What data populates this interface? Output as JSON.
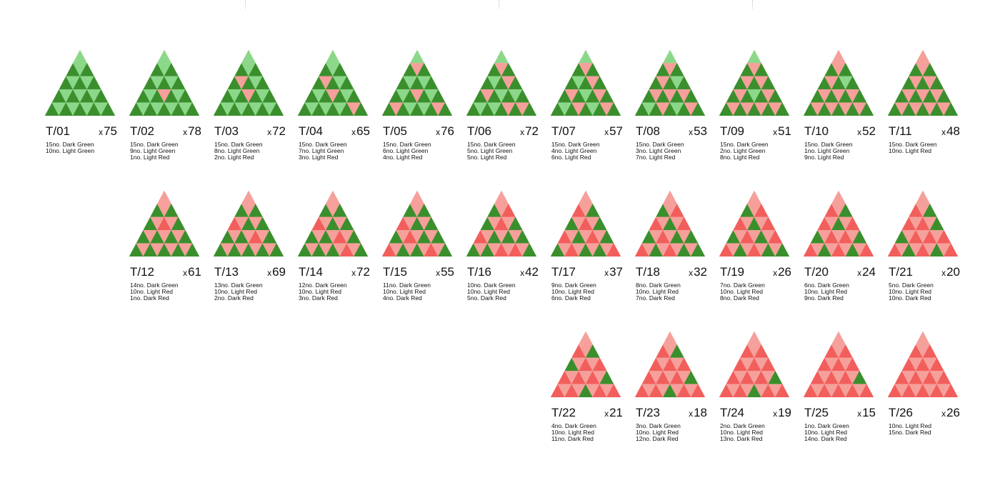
{
  "colors": {
    "Dark Green": "#3a8f2c",
    "Light Green": "#8cd88a",
    "Light Red": "#f6a09b",
    "Dark Red": "#f25e5c"
  },
  "tiles": [
    {
      "code": "T/01",
      "qty": "75",
      "row": 0,
      "col": 0,
      "lines": [
        "15no. Dark Green",
        "10no. Light Green"
      ],
      "grid": [
        [
          "LG"
        ],
        [
          "DG",
          "LG",
          "DG"
        ],
        [
          "DG",
          "LG",
          "DG",
          "LG",
          "DG"
        ],
        [
          "DG",
          "LG",
          "DG",
          "LG",
          "DG",
          "LG",
          "DG"
        ],
        [
          "DG",
          "LG",
          "DG",
          "LG",
          "DG",
          "LG",
          "DG",
          "LG",
          "DG"
        ]
      ]
    },
    {
      "code": "T/02",
      "qty": "78",
      "row": 0,
      "col": 1,
      "lines": [
        "15no. Dark Green",
        "9no. Light Green",
        "1no. Light Red"
      ],
      "grid": [
        [
          "LG"
        ],
        [
          "DG",
          "LG",
          "DG"
        ],
        [
          "DG",
          "LG",
          "DG",
          "LG",
          "DG"
        ],
        [
          "DG",
          "LG",
          "DG",
          "LR",
          "DG",
          "LG",
          "DG"
        ],
        [
          "DG",
          "LG",
          "DG",
          "LG",
          "DG",
          "LG",
          "DG",
          "LG",
          "DG"
        ]
      ]
    },
    {
      "code": "T/03",
      "qty": "72",
      "row": 0,
      "col": 2,
      "lines": [
        "15no. Dark Green",
        "8no. Light Green",
        "2no. Light Red"
      ],
      "grid": [
        [
          "LG"
        ],
        [
          "DG",
          "LG",
          "DG"
        ],
        [
          "DG",
          "LR",
          "DG",
          "LG",
          "DG"
        ],
        [
          "DG",
          "LG",
          "DG",
          "LR",
          "DG",
          "LG",
          "DG"
        ],
        [
          "DG",
          "LG",
          "DG",
          "LG",
          "DG",
          "LG",
          "DG",
          "LG",
          "DG"
        ]
      ]
    },
    {
      "code": "T/04",
      "qty": "65",
      "row": 0,
      "col": 3,
      "lines": [
        "15no. Dark Green",
        "7no. Light Green",
        "3no. Light Red"
      ],
      "grid": [
        [
          "LG"
        ],
        [
          "DG",
          "LG",
          "DG"
        ],
        [
          "DG",
          "LR",
          "DG",
          "LG",
          "DG"
        ],
        [
          "DG",
          "LG",
          "DG",
          "LR",
          "DG",
          "LG",
          "DG"
        ],
        [
          "DG",
          "LG",
          "DG",
          "LG",
          "DG",
          "LG",
          "DG",
          "LR",
          "DG"
        ]
      ]
    },
    {
      "code": "T/05",
      "qty": "76",
      "row": 0,
      "col": 4,
      "lines": [
        "15no. Dark Green",
        "6no. Light Green",
        "4no. Light Red"
      ],
      "grid": [
        [
          "LG"
        ],
        [
          "DG",
          "LR",
          "DG"
        ],
        [
          "DG",
          "LG",
          "DG",
          "LG",
          "DG"
        ],
        [
          "DG",
          "LG",
          "DG",
          "LR",
          "DG",
          "LG",
          "DG"
        ],
        [
          "DG",
          "LR",
          "DG",
          "LG",
          "DG",
          "LG",
          "DG",
          "LR",
          "DG"
        ]
      ]
    },
    {
      "code": "T/06",
      "qty": "72",
      "row": 0,
      "col": 5,
      "lines": [
        "15no. Dark Green",
        "5no. Light Green",
        "5no. Light Red"
      ],
      "grid": [
        [
          "LG"
        ],
        [
          "DG",
          "LR",
          "DG"
        ],
        [
          "DG",
          "LG",
          "DG",
          "LR",
          "DG"
        ],
        [
          "DG",
          "LR",
          "DG",
          "LG",
          "DG",
          "LG",
          "DG"
        ],
        [
          "DG",
          "LG",
          "DG",
          "LG",
          "DG",
          "LR",
          "DG",
          "LR",
          "DG"
        ]
      ]
    },
    {
      "code": "T/07",
      "qty": "57",
      "row": 0,
      "col": 6,
      "lines": [
        "15no. Dark Green",
        "4no. Light Green",
        "6no. Light Red"
      ],
      "grid": [
        [
          "LG"
        ],
        [
          "DG",
          "LR",
          "DG"
        ],
        [
          "DG",
          "LG",
          "DG",
          "LR",
          "DG"
        ],
        [
          "DG",
          "LR",
          "DG",
          "LG",
          "DG",
          "LR",
          "DG"
        ],
        [
          "DG",
          "LG",
          "DG",
          "LR",
          "DG",
          "LG",
          "DG",
          "LR",
          "DG"
        ]
      ]
    },
    {
      "code": "T/08",
      "qty": "53",
      "row": 0,
      "col": 7,
      "lines": [
        "15no. Dark Green",
        "3no. Light Green",
        "7no. Light Red"
      ],
      "grid": [
        [
          "LG"
        ],
        [
          "DG",
          "LR",
          "DG"
        ],
        [
          "DG",
          "LR",
          "DG",
          "LG",
          "DG"
        ],
        [
          "DG",
          "LR",
          "DG",
          "LR",
          "DG",
          "LR",
          "DG"
        ],
        [
          "DG",
          "LG",
          "DG",
          "LR",
          "DG",
          "LG",
          "DG",
          "LR",
          "DG"
        ]
      ]
    },
    {
      "code": "T/09",
      "qty": "51",
      "row": 0,
      "col": 8,
      "lines": [
        "15no. Dark Green",
        "2no. Light Green",
        "8no. Light Red"
      ],
      "grid": [
        [
          "LG"
        ],
        [
          "DG",
          "LR",
          "DG"
        ],
        [
          "DG",
          "LR",
          "DG",
          "LR",
          "DG"
        ],
        [
          "DG",
          "LR",
          "DG",
          "LG",
          "DG",
          "LR",
          "DG"
        ],
        [
          "DG",
          "LR",
          "DG",
          "LR",
          "DG",
          "LR",
          "DG",
          "LR",
          "DG"
        ]
      ]
    },
    {
      "code": "T/10",
      "qty": "52",
      "row": 0,
      "col": 9,
      "lines": [
        "15no. Dark Green",
        "1no. Light Green",
        "9no. Light Red"
      ],
      "grid": [
        [
          "LR"
        ],
        [
          "DG",
          "LR",
          "DG"
        ],
        [
          "DG",
          "LR",
          "DG",
          "LG",
          "DG"
        ],
        [
          "DG",
          "LR",
          "DG",
          "LR",
          "DG",
          "LR",
          "DG"
        ],
        [
          "DG",
          "LR",
          "DG",
          "LR",
          "DG",
          "LR",
          "DG",
          "LR",
          "DG"
        ]
      ]
    },
    {
      "code": "T/11",
      "qty": "48",
      "row": 0,
      "col": 10,
      "lines": [
        "15no. Dark Green",
        "10no. Light Red"
      ],
      "grid": [
        [
          "LR"
        ],
        [
          "DG",
          "LR",
          "DG"
        ],
        [
          "DG",
          "LR",
          "DG",
          "LR",
          "DG"
        ],
        [
          "DG",
          "LR",
          "DG",
          "LR",
          "DG",
          "LR",
          "DG"
        ],
        [
          "DG",
          "LR",
          "DG",
          "LR",
          "DG",
          "LR",
          "DG",
          "LR",
          "DG"
        ]
      ]
    },
    {
      "code": "T/12",
      "qty": "61",
      "row": 1,
      "col": 1,
      "lines": [
        "14no. Dark Green",
        "10no. Light Red",
        "1no. Dark Red"
      ],
      "grid": [
        [
          "LR"
        ],
        [
          "DG",
          "LR",
          "DG"
        ],
        [
          "DG",
          "LR",
          "DR",
          "LR",
          "DG"
        ],
        [
          "DG",
          "LR",
          "DG",
          "LR",
          "DG",
          "LR",
          "DG"
        ],
        [
          "DG",
          "LR",
          "DG",
          "LR",
          "DG",
          "LR",
          "DG",
          "LR",
          "DG"
        ]
      ]
    },
    {
      "code": "T/13",
      "qty": "69",
      "row": 1,
      "col": 2,
      "lines": [
        "13no. Dark Green",
        "10no. Light Red",
        "2no. Dark Red"
      ],
      "grid": [
        [
          "LR"
        ],
        [
          "DG",
          "LR",
          "DG"
        ],
        [
          "DR",
          "LR",
          "DG",
          "LR",
          "DG"
        ],
        [
          "DG",
          "LR",
          "DG",
          "LR",
          "DR",
          "LR",
          "DG"
        ],
        [
          "DG",
          "LR",
          "DG",
          "LR",
          "DG",
          "LR",
          "DG",
          "LR",
          "DG"
        ]
      ]
    },
    {
      "code": "T/14",
      "qty": "72",
      "row": 1,
      "col": 3,
      "lines": [
        "12no. Dark Green",
        "10no. Light Red",
        "3no. Dark Red"
      ],
      "grid": [
        [
          "LR"
        ],
        [
          "DG",
          "LR",
          "DG"
        ],
        [
          "DR",
          "LR",
          "DG",
          "LR",
          "DG"
        ],
        [
          "DG",
          "LR",
          "DG",
          "LR",
          "DR",
          "LR",
          "DG"
        ],
        [
          "DG",
          "LR",
          "DG",
          "LR",
          "DG",
          "LR",
          "DR",
          "LR",
          "DG"
        ]
      ]
    },
    {
      "code": "T/15",
      "qty": "55",
      "row": 1,
      "col": 4,
      "lines": [
        "11no. Dark Green",
        "10no. Light Red",
        "4no. Dark Red"
      ],
      "grid": [
        [
          "LR"
        ],
        [
          "DG",
          "LR",
          "DG"
        ],
        [
          "DR",
          "LR",
          "DG",
          "LR",
          "DG"
        ],
        [
          "DG",
          "LR",
          "DR",
          "LR",
          "DG",
          "LR",
          "DG"
        ],
        [
          "DR",
          "LR",
          "DG",
          "LR",
          "DG",
          "LR",
          "DR",
          "LR",
          "DG"
        ]
      ]
    },
    {
      "code": "T/16",
      "qty": "42",
      "row": 1,
      "col": 5,
      "lines": [
        "10no. Dark Green",
        "10no. Light Red",
        "5no. Dark Red"
      ],
      "grid": [
        [
          "LR"
        ],
        [
          "DG",
          "LR",
          "DR"
        ],
        [
          "DG",
          "LR",
          "DR",
          "LR",
          "DG"
        ],
        [
          "DR",
          "LR",
          "DG",
          "LR",
          "DG",
          "LR",
          "DG"
        ],
        [
          "DG",
          "LR",
          "DG",
          "LR",
          "DR",
          "LR",
          "DR",
          "LR",
          "DG"
        ]
      ]
    },
    {
      "code": "T/17",
      "qty": "37",
      "row": 1,
      "col": 6,
      "lines": [
        "9no. Dark Green",
        "10no. Light Red",
        "6no. Dark Red"
      ],
      "grid": [
        [
          "LR"
        ],
        [
          "DR",
          "LR",
          "DG"
        ],
        [
          "DG",
          "LR",
          "DR",
          "LR",
          "DG"
        ],
        [
          "DR",
          "LR",
          "DG",
          "LR",
          "DR",
          "LR",
          "DG"
        ],
        [
          "DG",
          "LR",
          "DR",
          "LR",
          "DG",
          "LR",
          "DG",
          "LR",
          "DR"
        ]
      ]
    },
    {
      "code": "T/18",
      "qty": "32",
      "row": 1,
      "col": 7,
      "lines": [
        "8no. Dark Green",
        "10no. Light Red",
        "7no. Dark Red"
      ],
      "grid": [
        [
          "LR"
        ],
        [
          "DG",
          "LR",
          "DR"
        ],
        [
          "DR",
          "LR",
          "DG",
          "LR",
          "DR"
        ],
        [
          "DG",
          "LR",
          "DR",
          "LR",
          "DG",
          "LR",
          "DG"
        ],
        [
          "DR",
          "LR",
          "DG",
          "LR",
          "DR",
          "LR",
          "DG",
          "LR",
          "DG"
        ]
      ]
    },
    {
      "code": "T/19",
      "qty": "26",
      "row": 1,
      "col": 8,
      "lines": [
        "7no. Dark Green",
        "10no. Light Red",
        "8no. Dark Red"
      ],
      "grid": [
        [
          "LR"
        ],
        [
          "DG",
          "LR",
          "DR"
        ],
        [
          "DR",
          "LR",
          "DG",
          "LR",
          "DR"
        ],
        [
          "DG",
          "LR",
          "DR",
          "LR",
          "DG",
          "LR",
          "DR"
        ],
        [
          "DR",
          "LR",
          "DG",
          "LR",
          "DR",
          "LR",
          "DG",
          "LR",
          "DG"
        ]
      ]
    },
    {
      "code": "T/20",
      "qty": "24",
      "row": 1,
      "col": 9,
      "lines": [
        "6no. Dark Green",
        "10no. Light Red",
        "9no. Dark Red"
      ],
      "grid": [
        [
          "LR"
        ],
        [
          "DR",
          "LR",
          "DG"
        ],
        [
          "DR",
          "LR",
          "DG",
          "LR",
          "DR"
        ],
        [
          "DG",
          "LR",
          "DR",
          "LR",
          "DR",
          "LR",
          "DG"
        ],
        [
          "DR",
          "LR",
          "DG",
          "LR",
          "DR",
          "LR",
          "DG",
          "LR",
          "DR"
        ]
      ]
    },
    {
      "code": "T/21",
      "qty": "20",
      "row": 1,
      "col": 10,
      "lines": [
        "5no. Dark Green",
        "10no. Light Red",
        "10no. Dark Red"
      ],
      "grid": [
        [
          "LR"
        ],
        [
          "DR",
          "LR",
          "DG"
        ],
        [
          "DR",
          "LR",
          "DR",
          "LR",
          "DG"
        ],
        [
          "DG",
          "LR",
          "DR",
          "LR",
          "DR",
          "LR",
          "DR"
        ],
        [
          "DR",
          "LR",
          "DG",
          "LR",
          "DR",
          "LR",
          "DG",
          "LR",
          "DR"
        ]
      ]
    },
    {
      "code": "T/22",
      "qty": "21",
      "row": 2,
      "col": 6,
      "lines": [
        "4no. Dark Green",
        "10no. Light Red",
        "11no. Dark Red"
      ],
      "grid": [
        [
          "LR"
        ],
        [
          "DR",
          "LR",
          "DG"
        ],
        [
          "DG",
          "LR",
          "DR",
          "LR",
          "DR"
        ],
        [
          "DR",
          "LR",
          "DR",
          "LR",
          "DR",
          "LR",
          "DG"
        ],
        [
          "DR",
          "LR",
          "DR",
          "LR",
          "DG",
          "LR",
          "DR",
          "LR",
          "DR"
        ]
      ]
    },
    {
      "code": "T/23",
      "qty": "18",
      "row": 2,
      "col": 7,
      "lines": [
        "3no. Dark Green",
        "10no. Light Red",
        "12no. Dark Red"
      ],
      "grid": [
        [
          "LR"
        ],
        [
          "DR",
          "LR",
          "DG"
        ],
        [
          "DR",
          "LR",
          "DR",
          "LR",
          "DR"
        ],
        [
          "DR",
          "LR",
          "DR",
          "LR",
          "DR",
          "LR",
          "DG"
        ],
        [
          "DR",
          "LR",
          "DR",
          "LR",
          "DG",
          "LR",
          "DR",
          "LR",
          "DR"
        ]
      ]
    },
    {
      "code": "T/24",
      "qty": "19",
      "row": 2,
      "col": 8,
      "lines": [
        "2no. Dark Green",
        "10no. Light Red",
        "13no. Dark Red"
      ],
      "grid": [
        [
          "LR"
        ],
        [
          "DR",
          "LR",
          "DR"
        ],
        [
          "DR",
          "LR",
          "DR",
          "LR",
          "DR"
        ],
        [
          "DR",
          "LR",
          "DR",
          "LR",
          "DR",
          "LR",
          "DG"
        ],
        [
          "DR",
          "LR",
          "DR",
          "LR",
          "DG",
          "LR",
          "DR",
          "LR",
          "DR"
        ]
      ]
    },
    {
      "code": "T/25",
      "qty": "15",
      "row": 2,
      "col": 9,
      "lines": [
        "1no. Dark Green",
        "10no. Light Red",
        "14no. Dark Red"
      ],
      "grid": [
        [
          "LR"
        ],
        [
          "DR",
          "LR",
          "DR"
        ],
        [
          "DR",
          "LR",
          "DR",
          "LR",
          "DR"
        ],
        [
          "DR",
          "LR",
          "DR",
          "LR",
          "DR",
          "LR",
          "DG"
        ],
        [
          "DR",
          "LR",
          "DR",
          "LR",
          "DR",
          "LR",
          "DR",
          "LR",
          "DR"
        ]
      ]
    },
    {
      "code": "T/26",
      "qty": "26",
      "row": 2,
      "col": 10,
      "lines": [
        "10no. Light Red",
        "15no. Dark Red"
      ],
      "grid": [
        [
          "LR"
        ],
        [
          "DR",
          "LR",
          "DR"
        ],
        [
          "DR",
          "LR",
          "DR",
          "LR",
          "DR"
        ],
        [
          "DR",
          "LR",
          "DR",
          "LR",
          "DR",
          "LR",
          "DR"
        ],
        [
          "DR",
          "LR",
          "DR",
          "LR",
          "DR",
          "LR",
          "DR",
          "LR",
          "DR"
        ]
      ]
    }
  ]
}
